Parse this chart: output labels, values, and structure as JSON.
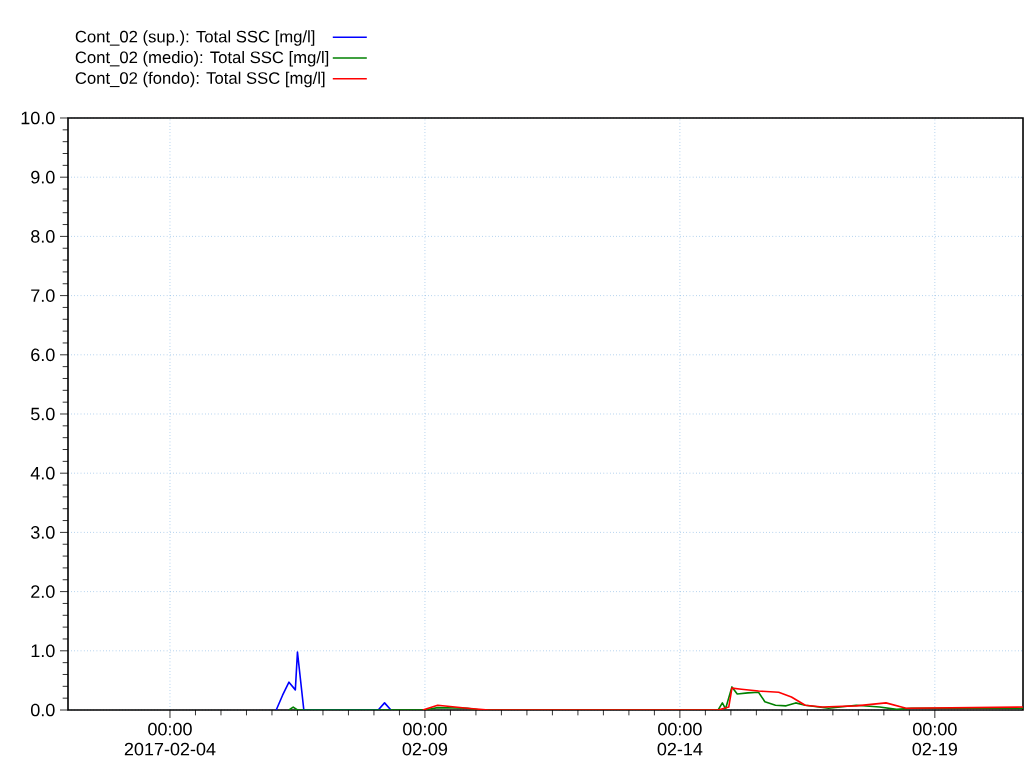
{
  "chart_data": {
    "type": "line",
    "xlim": [
      "2017-02-02T00:00",
      "2017-02-20T17:30"
    ],
    "xticks": [
      {
        "value": "2017-02-04T00:00",
        "label": "00:00 2017-02-04"
      },
      {
        "value": "2017-02-09T00:00",
        "label": "00:00 02-09"
      },
      {
        "value": "2017-02-14T00:00",
        "label": "00:00 02-14"
      },
      {
        "value": "2017-02-19T00:00",
        "label": "00:00 02-19"
      }
    ],
    "ylim": [
      0,
      10
    ],
    "yticks": [
      {
        "value": 0,
        "label": "0.0"
      },
      {
        "value": 1,
        "label": "1.0"
      },
      {
        "value": 2,
        "label": "2.0"
      },
      {
        "value": 3,
        "label": "3.0"
      },
      {
        "value": 4,
        "label": "4.0"
      },
      {
        "value": 5,
        "label": "5.0"
      },
      {
        "value": 6,
        "label": "6.0"
      },
      {
        "value": 7,
        "label": "7.0"
      },
      {
        "value": 8,
        "label": "8.0"
      },
      {
        "value": 9,
        "label": "9.0"
      },
      {
        "value": 10,
        "label": "10.0"
      }
    ],
    "grid": true,
    "legend": "top left",
    "marker": "none",
    "line_style": "solid",
    "series": [
      {
        "name": "Cont_02 (sup.): Total SSC [mg/l]",
        "color": "#0000ff",
        "x": [
          "2017-02-06T02:00",
          "2017-02-06T05:00",
          "2017-02-06T08:00",
          "2017-02-06T11:00",
          "2017-02-06T12:00",
          "2017-02-06T15:00",
          "2017-02-08T02:00",
          "2017-02-08T05:00",
          "2017-02-08T08:00"
        ],
        "values": [
          0,
          0.25,
          0.47,
          0.34,
          0.98,
          0,
          0,
          0.12,
          0
        ]
      },
      {
        "name": "Cont_02 (medio): Total SSC [mg/l]",
        "color": "#008000",
        "x": [
          "2017-02-06T08:00",
          "2017-02-06T10:00",
          "2017-02-06T12:00",
          "2017-02-09T00:00",
          "2017-02-09T06:00",
          "2017-02-09T20:00",
          "2017-02-10T02:00",
          "2017-02-14T18:00",
          "2017-02-14T20:00",
          "2017-02-14T21:30",
          "2017-02-15T00:30",
          "2017-02-15T03:00",
          "2017-02-15T08:00",
          "2017-02-15T13:00",
          "2017-02-15T16:00",
          "2017-02-15T21:00",
          "2017-02-16T02:00",
          "2017-02-16T06:30",
          "2017-02-16T11:00",
          "2017-02-16T22:00",
          "2017-02-17T11:00",
          "2017-02-17T22:00",
          "2017-02-18T06:00",
          "2017-02-18T13:00",
          "2017-02-20T17:30"
        ],
        "values": [
          0,
          0.05,
          0,
          0,
          0.04,
          0.03,
          0,
          0,
          0.12,
          0.02,
          0.39,
          0.27,
          0.29,
          0.3,
          0.14,
          0.08,
          0.07,
          0.12,
          0.08,
          0.03,
          0.08,
          0.05,
          0.01,
          0.03,
          0.03
        ]
      },
      {
        "name": "Cont_02 (fondo): Total SSC [mg/l]",
        "color": "#ff0000",
        "x": [
          "2017-02-08T23:00",
          "2017-02-09T06:00",
          "2017-02-09T20:00",
          "2017-02-10T06:00",
          "2017-02-14T18:00",
          "2017-02-14T23:00",
          "2017-02-15T00:30",
          "2017-02-15T05:00",
          "2017-02-15T13:00",
          "2017-02-15T22:30",
          "2017-02-16T04:30",
          "2017-02-16T11:00",
          "2017-02-16T19:00",
          "2017-02-17T11:00",
          "2017-02-18T01:00",
          "2017-02-18T10:30",
          "2017-02-20T17:30"
        ],
        "values": [
          0,
          0.08,
          0.03,
          0,
          0,
          0.05,
          0.37,
          0.35,
          0.32,
          0.3,
          0.22,
          0.08,
          0.05,
          0.07,
          0.12,
          0.03,
          0.05
        ]
      }
    ]
  }
}
